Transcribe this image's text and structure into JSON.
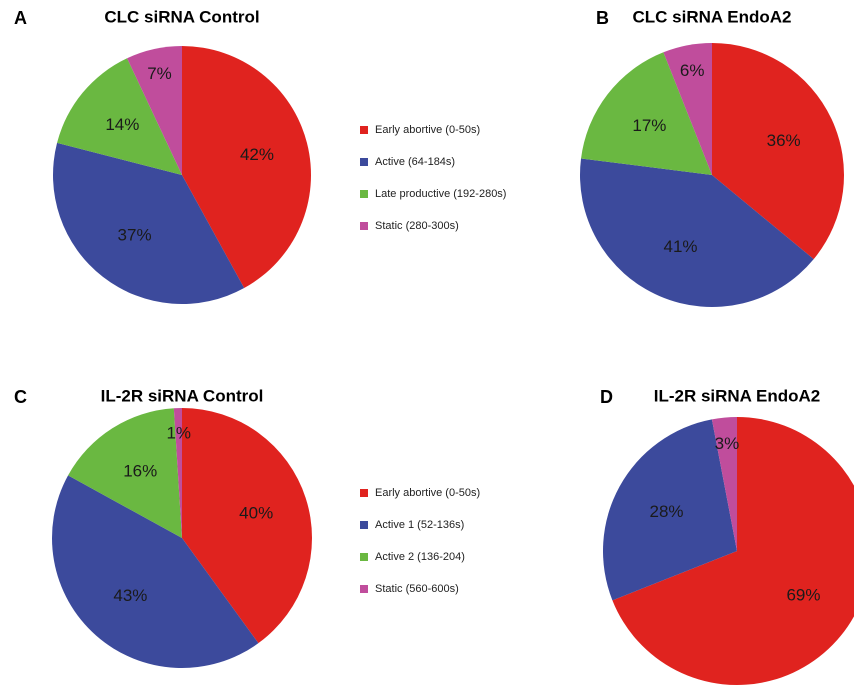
{
  "chart_data": [
    {
      "type": "pie",
      "panel": "A",
      "title": "CLC siRNA Control",
      "categories": [
        "Early abortive (0-50s)",
        "Active (64-184s)",
        "Late productive (192-280s)",
        "Static (280-300s)"
      ],
      "values": [
        42,
        37,
        14,
        7
      ],
      "value_labels": [
        "42%",
        "37%",
        "14%",
        "7%"
      ],
      "colors": [
        "#e0231f",
        "#3c4a9c",
        "#6ab841",
        "#c04d9c"
      ]
    },
    {
      "type": "pie",
      "panel": "B",
      "title": "CLC siRNA EndoA2",
      "values": [
        36,
        41,
        17,
        6
      ],
      "value_labels": [
        "36%",
        "41%",
        "17%",
        "6%"
      ],
      "colors": [
        "#e0231f",
        "#3c4a9c",
        "#6ab841",
        "#c04d9c"
      ]
    },
    {
      "type": "pie",
      "panel": "C",
      "title": "IL-2R siRNA Control",
      "categories": [
        "Early abortive (0-50s)",
        "Active 1 (52-136s)",
        "Active 2 (136-204)",
        "Static (560-600s)"
      ],
      "values": [
        40,
        43,
        16,
        1
      ],
      "value_labels": [
        "40%",
        "43%",
        "16%",
        "1%"
      ],
      "colors": [
        "#e0231f",
        "#3c4a9c",
        "#6ab841",
        "#c04d9c"
      ]
    },
    {
      "type": "pie",
      "panel": "D",
      "title": "IL-2R siRNA EndoA2",
      "values": [
        69,
        28,
        3
      ],
      "value_labels": [
        "69%",
        "28%",
        "3%"
      ],
      "colors": [
        "#e0231f",
        "#3c4a9c",
        "#c04d9c"
      ]
    }
  ]
}
